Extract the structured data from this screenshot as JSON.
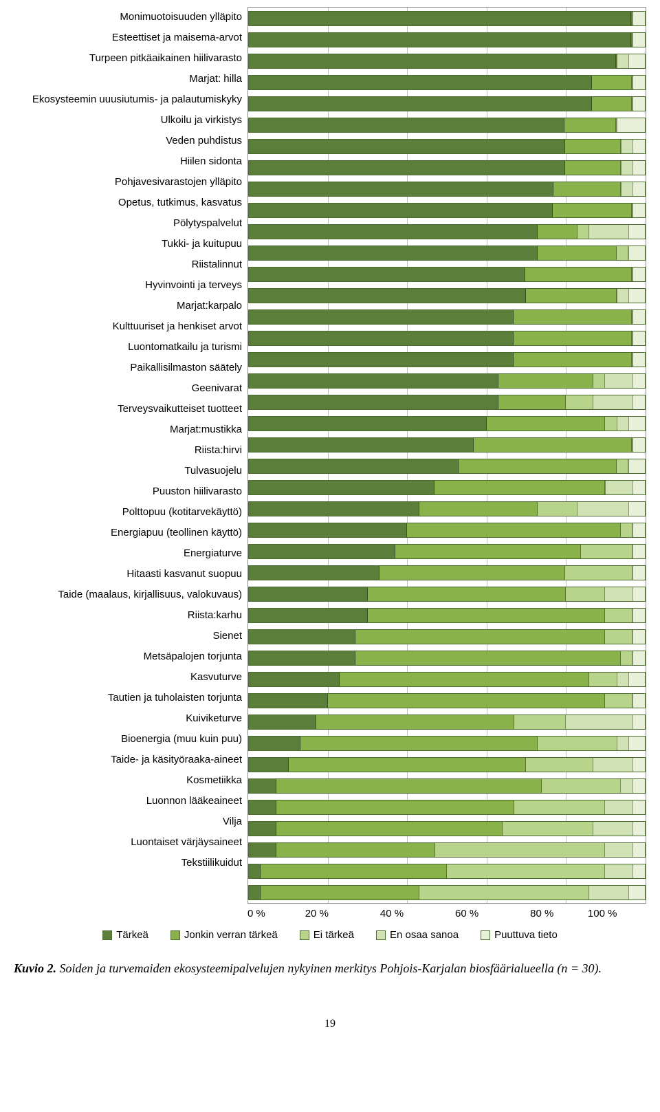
{
  "chart": {
    "type": "stacked-bar-horizontal",
    "x_axis": {
      "ticks": [
        "0 %",
        "20 %",
        "40 %",
        "60 %",
        "80 %",
        "100 %"
      ],
      "tick_positions_pct": [
        0,
        20,
        40,
        60,
        80,
        100
      ],
      "grid_color": "#bfbfbf",
      "fontsize": 15
    },
    "colors": {
      "tarkeä": "#5b7f3b",
      "jonkin": "#89b24a",
      "ei": "#b7d48a",
      "enosaa": "#d1e3b4",
      "puuttuva": "#e9f0da",
      "bar_border": "#4a6a30",
      "chart_border": "#888888"
    },
    "legend": [
      {
        "key": "tarkeä",
        "label": "Tärkeä"
      },
      {
        "key": "jonkin",
        "label": "Jonkin verran tärkeä"
      },
      {
        "key": "ei",
        "label": "Ei tärkeä"
      },
      {
        "key": "enosaa",
        "label": "En osaa sanoa"
      },
      {
        "key": "puuttuva",
        "label": "Puuttuva tieto"
      }
    ],
    "categories": [
      {
        "label": "Monimuotoisuuden ylläpito",
        "v": [
          97,
          0,
          0,
          0,
          3
        ]
      },
      {
        "label": "Esteettiset ja maisema-arvot",
        "v": [
          97,
          0,
          0,
          0,
          3
        ]
      },
      {
        "label": "Turpeen pitkäaikainen hiilivarasto",
        "v": [
          93,
          0,
          0,
          3,
          4
        ]
      },
      {
        "label": "Marjat: hilla",
        "v": [
          87,
          10,
          0,
          0,
          3
        ]
      },
      {
        "label": "Ekosysteemin uuusiutumis- ja palautumiskyky",
        "v": [
          87,
          10,
          0,
          0,
          3
        ]
      },
      {
        "label": "Ulkoilu ja virkistys",
        "v": [
          80,
          13,
          0,
          0,
          7
        ]
      },
      {
        "label": "Veden puhdistus",
        "v": [
          80,
          14,
          0,
          3,
          3
        ]
      },
      {
        "label": "Hiilen sidonta",
        "v": [
          80,
          14,
          0,
          3,
          3
        ]
      },
      {
        "label": "Pohjavesivarastojen ylläpito",
        "v": [
          77,
          17,
          0,
          3,
          3
        ]
      },
      {
        "label": "Opetus, tutkimus, kasvatus",
        "v": [
          77,
          20,
          0,
          0,
          3
        ]
      },
      {
        "label": "Pölytyspalvelut",
        "v": [
          73,
          10,
          3,
          10,
          4
        ]
      },
      {
        "label": "Tukki- ja kuitupuu",
        "v": [
          73,
          20,
          3,
          0,
          4
        ]
      },
      {
        "label": "Riistalinnut",
        "v": [
          70,
          27,
          0,
          0,
          3
        ]
      },
      {
        "label": "Hyvinvointi ja terveys",
        "v": [
          70,
          23,
          0,
          3,
          4
        ]
      },
      {
        "label": "Marjat:karpalo",
        "v": [
          67,
          30,
          0,
          0,
          3
        ]
      },
      {
        "label": "Kulttuuriset ja henkiset arvot",
        "v": [
          67,
          30,
          0,
          0,
          3
        ]
      },
      {
        "label": "Luontomatkailu ja turismi",
        "v": [
          67,
          30,
          0,
          0,
          3
        ]
      },
      {
        "label": "Paikallisilmaston säätely",
        "v": [
          63,
          24,
          3,
          7,
          3
        ]
      },
      {
        "label": "Geenivarat",
        "v": [
          63,
          17,
          7,
          10,
          3
        ]
      },
      {
        "label": "Terveysvaikutteiset tuotteet",
        "v": [
          60,
          30,
          3,
          3,
          4
        ]
      },
      {
        "label": "Marjat:mustikka",
        "v": [
          57,
          40,
          0,
          0,
          3
        ]
      },
      {
        "label": "Riista:hirvi",
        "v": [
          53,
          40,
          3,
          0,
          4
        ]
      },
      {
        "label": "Tulvasuojelu",
        "v": [
          47,
          43,
          0,
          7,
          3
        ]
      },
      {
        "label": "Puuston hiilivarasto",
        "v": [
          43,
          30,
          10,
          13,
          4
        ]
      },
      {
        "label": "Polttopuu (kotitarvekäyttö)",
        "v": [
          40,
          54,
          3,
          0,
          3
        ]
      },
      {
        "label": "Energiapuu (teollinen käyttö)",
        "v": [
          37,
          47,
          13,
          0,
          3
        ]
      },
      {
        "label": "Energiaturve",
        "v": [
          33,
          47,
          17,
          0,
          3
        ]
      },
      {
        "label": "Hitaasti kasvanut suopuu",
        "v": [
          30,
          50,
          10,
          7,
          3
        ]
      },
      {
        "label": "Taide (maalaus, kirjallisuus, valokuvaus)",
        "v": [
          30,
          60,
          7,
          0,
          3
        ]
      },
      {
        "label": "Riista:karhu",
        "v": [
          27,
          63,
          7,
          0,
          3
        ]
      },
      {
        "label": "Sienet",
        "v": [
          27,
          67,
          3,
          0,
          3
        ]
      },
      {
        "label": "Metsäpalojen torjunta",
        "v": [
          23,
          63,
          7,
          3,
          4
        ]
      },
      {
        "label": "Kasvuturve",
        "v": [
          20,
          70,
          7,
          0,
          3
        ]
      },
      {
        "label": "Tautien ja tuholaisten torjunta",
        "v": [
          17,
          50,
          13,
          17,
          3
        ]
      },
      {
        "label": "Kuiviketurve",
        "v": [
          13,
          60,
          20,
          3,
          4
        ]
      },
      {
        "label": "Bioenergia (muu kuin puu)",
        "v": [
          10,
          60,
          17,
          10,
          3
        ]
      },
      {
        "label": "Taide- ja käsityöraaka-aineet",
        "v": [
          7,
          67,
          20,
          3,
          3
        ]
      },
      {
        "label": "Kosmetiikka",
        "v": [
          7,
          60,
          23,
          7,
          3
        ]
      },
      {
        "label": "Luonnon lääkeaineet",
        "v": [
          7,
          57,
          23,
          10,
          3
        ]
      },
      {
        "label": "Vilja",
        "v": [
          7,
          40,
          43,
          7,
          3
        ]
      },
      {
        "label": "Luontaiset värjäysaineet",
        "v": [
          3,
          47,
          40,
          7,
          3
        ]
      },
      {
        "label": "Tekstiilikuidut",
        "v": [
          3,
          40,
          43,
          10,
          4
        ]
      }
    ]
  },
  "caption": {
    "prefix": "Kuvio 2.",
    "text": " Soiden ja turvemaiden ekosysteemipalvelujen nykyinen merkitys Pohjois-Karjalan biosfäärialueella (n = 30)."
  },
  "page_number": "19"
}
